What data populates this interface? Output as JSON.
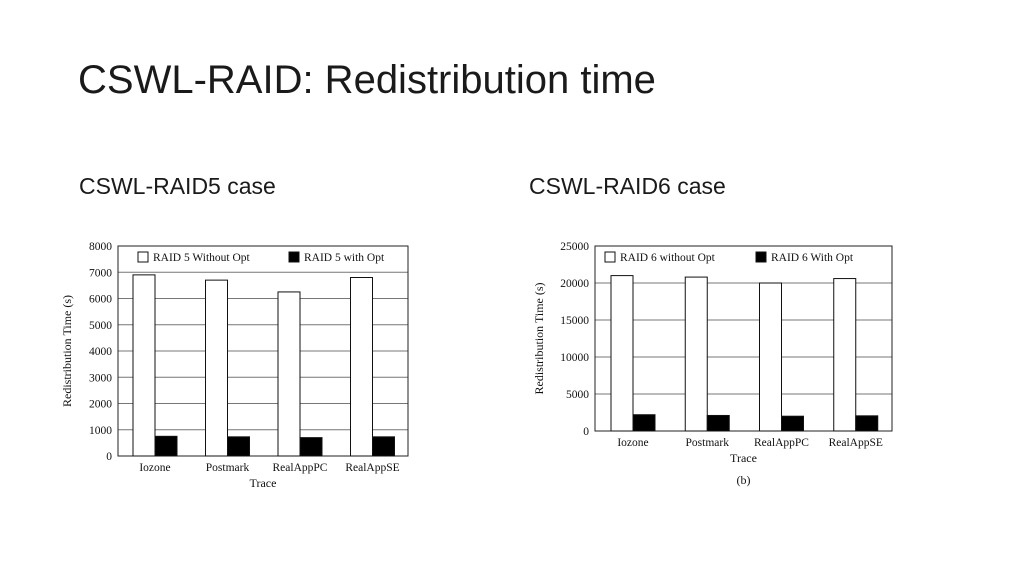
{
  "slide": {
    "title": "CSWL-RAID: Redistribution time",
    "left_heading": "CSWL-RAID5 case",
    "right_heading": "CSWL-RAID6 case"
  },
  "chart_data": [
    {
      "type": "bar",
      "categories": [
        "Iozone",
        "Postmark",
        "RealAppPC",
        "RealAppSE"
      ],
      "series": [
        {
          "name": "RAID 5 Without Opt",
          "values": [
            6900,
            6700,
            6250,
            6800
          ],
          "color": "#ffffff"
        },
        {
          "name": "RAID 5 with Opt",
          "values": [
            750,
            730,
            700,
            730
          ],
          "color": "#000000"
        }
      ],
      "title": "",
      "xlabel": "Trace",
      "ylabel": "Redistribution Time (s)",
      "ylim": [
        0,
        8000
      ],
      "yticks": [
        0,
        1000,
        2000,
        3000,
        4000,
        5000,
        6000,
        7000,
        8000
      ],
      "grid": true,
      "legend": "top",
      "caption": ""
    },
    {
      "type": "bar",
      "categories": [
        "Iozone",
        "Postmark",
        "RealAppPC",
        "RealAppSE"
      ],
      "series": [
        {
          "name": "RAID 6 without Opt",
          "values": [
            21000,
            20800,
            20000,
            20600
          ],
          "color": "#ffffff"
        },
        {
          "name": "RAID 6 With Opt",
          "values": [
            2200,
            2100,
            2000,
            2050
          ],
          "color": "#000000"
        }
      ],
      "title": "",
      "xlabel": "Trace",
      "ylabel": "Redistribution Time (s)",
      "ylim": [
        0,
        25000
      ],
      "yticks": [
        0,
        5000,
        10000,
        15000,
        20000,
        25000
      ],
      "grid": true,
      "legend": "top",
      "caption": "(b)"
    }
  ]
}
